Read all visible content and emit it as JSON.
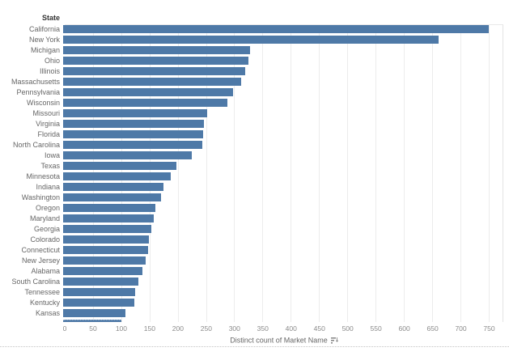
{
  "chart_data": {
    "type": "bar",
    "orientation": "horizontal",
    "row_header": "State",
    "xlabel": "Distinct count of Market Name",
    "categories": [
      "California",
      "New York",
      "Michigan",
      "Ohio",
      "Illinois",
      "Massachusetts",
      "Pennsylvania",
      "Wisconsin",
      "Missouri",
      "Virginia",
      "Florida",
      "North Carolina",
      "Iowa",
      "Texas",
      "Minnesota",
      "Indiana",
      "Washington",
      "Oregon",
      "Maryland",
      "Georgia",
      "Colorado",
      "Connecticut",
      "New Jersey",
      "Alabama",
      "South Carolina",
      "Tennessee",
      "Kentucky",
      "Kansas"
    ],
    "values": [
      750,
      661,
      329,
      326,
      321,
      313,
      299,
      289,
      253,
      248,
      246,
      245,
      226,
      199,
      189,
      177,
      172,
      162,
      159,
      155,
      151,
      149,
      146,
      140,
      132,
      127,
      125,
      109
    ],
    "partial_row": {
      "label": "",
      "value": 103
    },
    "ticks": [
      0,
      50,
      100,
      150,
      200,
      250,
      300,
      350,
      400,
      450,
      500,
      550,
      600,
      650,
      700,
      750
    ],
    "xlim": [
      0,
      775
    ],
    "grid": true,
    "legend": "none",
    "bar_color": "#4e79a7",
    "grid_color": "#ececec",
    "sort_icon": "sort-descending-icon"
  }
}
